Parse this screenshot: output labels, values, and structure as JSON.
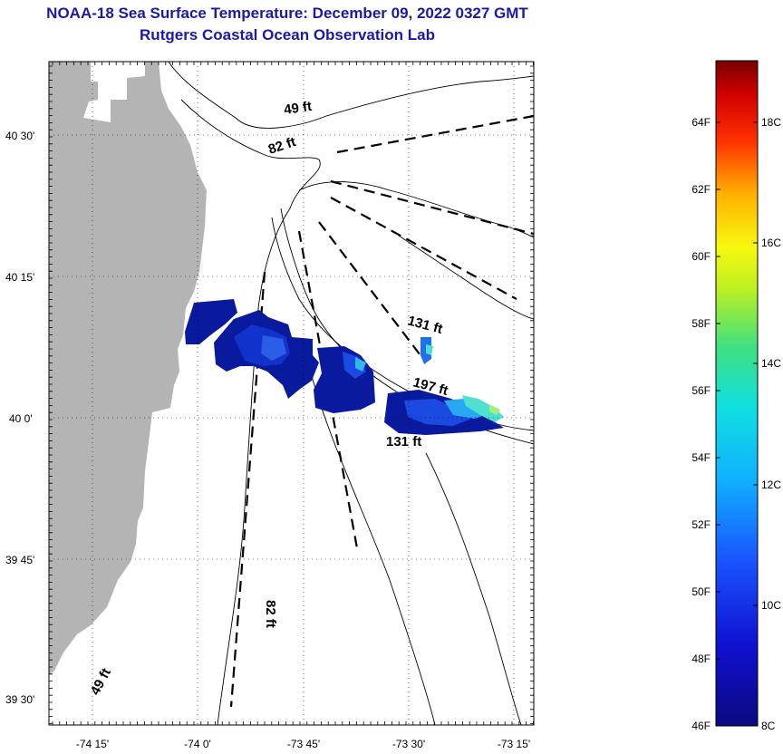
{
  "title": {
    "line1": "NOAA-18 Sea Surface Temperature:  December 09, 2022 0327 GMT",
    "line2": "Rutgers Coastal Ocean Observation Lab"
  },
  "map": {
    "lat_labels": [
      "40 30'",
      "40 15'",
      "40 0'",
      "39 45'",
      "39 30'"
    ],
    "lon_labels": [
      "-74 15'",
      "-74 0'",
      "-73 45'",
      "-73 30'",
      "-73 15'"
    ],
    "depth_labels": [
      "49 ft",
      "82 ft",
      "131 ft",
      "197 ft",
      "131 ft",
      "82 ft",
      "49 ft"
    ]
  },
  "colorbar": {
    "fahrenheit_labels": [
      "64F",
      "62F",
      "60F",
      "58F",
      "56F",
      "54F",
      "52F",
      "50F",
      "48F",
      "46F"
    ],
    "celsius_labels": [
      "18C",
      "16C",
      "14C",
      "12C",
      "10C",
      "8C"
    ]
  },
  "colors": {
    "title": "#1a1aa8",
    "land": "#b4b4b4",
    "ocean_nodata": "#ffffff"
  }
}
